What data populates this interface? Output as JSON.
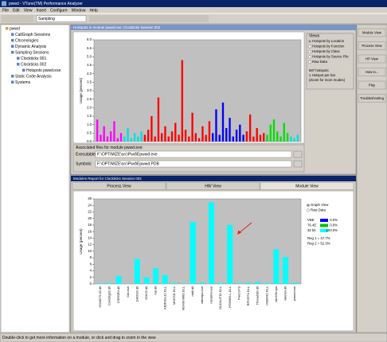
{
  "window": {
    "title": "pwwd - VTune(TM) Performance Analyzer",
    "toolbar_combo": "Sampling"
  },
  "menu": [
    "File",
    "Edit",
    "View",
    "Insert",
    "Configure",
    "Window",
    "Help"
  ],
  "tree": {
    "label": "pwwd",
    "children": [
      {
        "label": "CallGraph Sessions"
      },
      {
        "label": "Chronologies"
      },
      {
        "label": "Dynamic Analysis"
      },
      {
        "label": "Sampling Sessions",
        "children": [
          {
            "label": "Clockticks 001"
          },
          {
            "label": "Clockticks 002",
            "children": [
              {
                "label": "Hotspots pwwd.exe"
              }
            ]
          }
        ]
      },
      {
        "label": "Static Code Analysis"
      },
      {
        "label": "Systems"
      }
    ]
  },
  "hotspots": {
    "type": "bar",
    "window_title": "HotSpots in module pwwd.exe: Clockticks Session 002",
    "y_label": "Usage (percent)",
    "ylim": [
      0,
      6
    ],
    "yticks": [
      {
        "value": 0,
        "label": "0.0"
      },
      {
        "value": 0.5,
        "label": "0.5"
      },
      {
        "value": 1,
        "label": "1.0"
      },
      {
        "value": 1.5,
        "label": "1.5"
      },
      {
        "value": 2,
        "label": "2.0"
      },
      {
        "value": 2.5,
        "label": "2.5"
      },
      {
        "value": 3,
        "label": "3.0"
      },
      {
        "value": 3.5,
        "label": "3.5"
      },
      {
        "value": 4,
        "label": "4.0"
      },
      {
        "value": 4.5,
        "label": "4.5"
      },
      {
        "value": 5,
        "label": "5.0"
      },
      {
        "value": 5.5,
        "label": "5.5"
      },
      {
        "value": 6,
        "label": "6.0"
      }
    ],
    "groups": [
      {
        "color": "#ff00ff",
        "values": [
          1.3,
          0.4,
          0.9,
          0.3,
          0.6,
          1.2,
          0.2,
          0.5
        ]
      },
      {
        "color": "#00e0e0",
        "values": [
          0.3,
          0.8,
          0.2,
          0.5,
          0.3,
          0.6
        ]
      },
      {
        "color": "#ff0000",
        "values": [
          0.4,
          0.7,
          1.5,
          0.3,
          2.6,
          0.5,
          0.9,
          0.3,
          0.6,
          1.1,
          0.4,
          4.8,
          0.7,
          0.3,
          1.7,
          0.5,
          0.2,
          0.9,
          0.4,
          1.2
        ]
      },
      {
        "color": "#0000ff",
        "values": [
          0.5,
          1.9,
          0.4,
          2.3,
          0.8,
          1.4,
          0.3,
          0.7,
          1.0,
          0.4
        ]
      },
      {
        "color": "#ff0000",
        "values": [
          0.6,
          1.6,
          0.3,
          0.8,
          0.4,
          0.5
        ]
      },
      {
        "color": "#00e000",
        "values": [
          0.4,
          1.0,
          1.3,
          0.6,
          0.3,
          1.1,
          0.5
        ]
      },
      {
        "color": "#00e0e0",
        "values": [
          0.3,
          0.2,
          0.4
        ]
      }
    ],
    "views": {
      "title": "Views",
      "options": [
        "Hotspots by Location",
        "Hotspots by Function",
        "Hotspots by Class",
        "Hotspots by Source File",
        "Raw Data"
      ],
      "notes": [
        "587 hotspots",
        "1 Hotspot per bar",
        "(Zoom for more modes)"
      ]
    },
    "files": {
      "title": "Associated files for module pwwd.exe:",
      "executable_label": "Executable:",
      "executable": "F:\\OPTIMIZE\\src\\Pwd\\Epwwd.exe",
      "symbols_label": "Symbols:",
      "symbols": "F:\\OPTIMIZE\\src\\Pwd\\Epwwd.PDB"
    }
  },
  "modules": {
    "type": "bar",
    "window_title": "Modules Report for Clockticks Session 002",
    "tabs": [
      "Process View",
      "HW View",
      "Module View"
    ],
    "y_label": "Usage (percent)",
    "color": "#00ffff",
    "ylim": [
      0,
      26
    ],
    "yticks": [
      0,
      2,
      4,
      6,
      8,
      10,
      12,
      14,
      16,
      18,
      20,
      22,
      24,
      26
    ],
    "categories": [
      "COMCTL32.dll",
      "ComDlg32.dll",
      "CSRSRV.dll",
      "Ctrl.exe",
      "GADI32.dll",
      "GDI32.dll",
      "hal.dll",
      "KERNEL32.DLL",
      "MSGSD.DLL",
      "MSVBVM60.DLL",
      "ntdll.dll",
      "ntkrnlpa.exe",
      "ntoskrnl.exe",
      "OLEAUT32.DLL",
      "POSHELL.DLL",
      "Pwd.SYS",
      "RPCRT4.DLL",
      "ThreadSD.dll",
      "USER32.DLL",
      "win32k.sys",
      "winmm.dll",
      "pwwd.exe"
    ],
    "values": [
      0.2,
      0.3,
      2.4,
      0.1,
      7.6,
      2.0,
      4.8,
      2.7,
      0.3,
      0.2,
      18.9,
      0.4,
      24.9,
      0.3,
      18.0,
      0.2,
      0.4,
      0.6,
      0.3,
      10.6,
      8.2,
      0.4
    ],
    "legend": {
      "options": [
        "Graph View",
        "Raw Data"
      ],
      "rows": [
        {
          "name": "VBE",
          "color": "#0000ff",
          "value": "0.0%"
        },
        {
          "name": "76.4E",
          "color": "#00c000",
          "value": "0.0%"
        },
        {
          "name": "32 bit",
          "color": "#00ffff",
          "value": "100.0%"
        }
      ],
      "notes": [
        "Reg 1 = 47.7%",
        "Reg 2 = 52.3%"
      ]
    }
  },
  "side_buttons": [
    "Module View",
    "Process View",
    "HP View",
    "How to...",
    "Play",
    "Troubleshooting"
  ],
  "status": "Double-click to get more information on a module, or click and drag to zoom in the view"
}
